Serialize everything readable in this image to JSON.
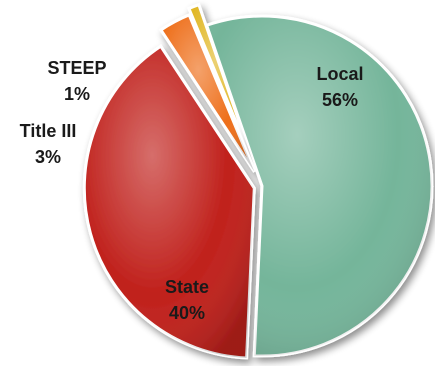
{
  "chart_data": {
    "type": "pie",
    "title": "",
    "slices": [
      {
        "label": "Local",
        "value": 56,
        "percent_label": "56%",
        "color": "#74b59a"
      },
      {
        "label": "State",
        "value": 40,
        "percent_label": "40%",
        "color": "#c0201b"
      },
      {
        "label": "Title III",
        "value": 3,
        "percent_label": "3%",
        "color": "#ee6f1b"
      },
      {
        "label": "STEEP",
        "value": 1,
        "percent_label": "1%",
        "color": "#e1b827"
      }
    ],
    "legend": "none"
  }
}
